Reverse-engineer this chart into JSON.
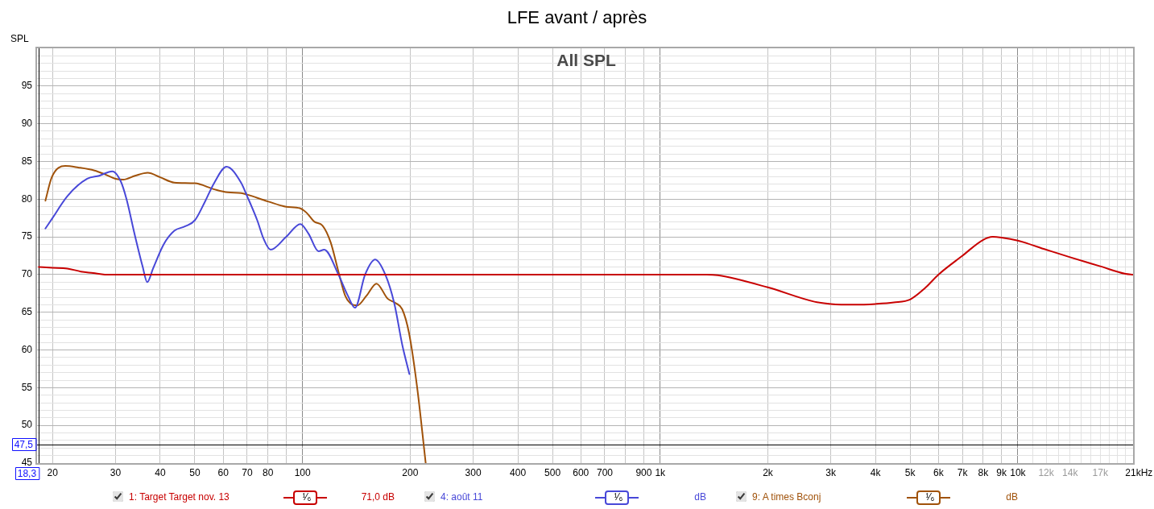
{
  "chart_data": {
    "type": "line",
    "title": "LFE avant / après",
    "subtitle": "All SPL",
    "ylabel": "SPL",
    "xlabel": "Hz",
    "xlim": [
      18.1,
      21000
    ],
    "ylim": [
      45,
      100
    ],
    "log": "x",
    "grid": true,
    "legend": "bottom",
    "line_style": "solid",
    "xticks": [
      20,
      30,
      40,
      50,
      60,
      70,
      80,
      {
        "value": 90,
        "label": null
      },
      100,
      200,
      300,
      400,
      500,
      600,
      700,
      {
        "value": 800,
        "label": null
      },
      900,
      {
        "value": 1000,
        "label": "1k"
      },
      {
        "value": 2000,
        "label": "2k"
      },
      {
        "value": 3000,
        "label": "3k"
      },
      {
        "value": 4000,
        "label": "4k"
      },
      {
        "value": 5000,
        "label": "5k"
      },
      {
        "value": 6000,
        "label": "6k"
      },
      {
        "value": 7000,
        "label": "7k"
      },
      {
        "value": 8000,
        "label": "8k"
      },
      {
        "value": 9000,
        "label": "9k"
      },
      {
        "value": 10000,
        "label": "10k"
      },
      {
        "value": 11000,
        "label": null
      },
      {
        "value": 12000,
        "label": "12k"
      },
      {
        "value": 13000,
        "label": null
      },
      {
        "value": 14000,
        "label": "14k"
      },
      {
        "value": 15000,
        "label": null
      },
      {
        "value": 16000,
        "label": null
      },
      {
        "value": 17000,
        "label": "17k"
      },
      {
        "value": 18000,
        "label": null
      },
      {
        "value": 19000,
        "label": null
      },
      {
        "value": 20000,
        "label": null
      },
      {
        "value": 21000,
        "label": "21k"
      }
    ],
    "yticks": [
      45,
      {
        "value": 46,
        "label": null
      },
      {
        "value": 47,
        "label": null
      },
      {
        "value": 48,
        "label": null
      },
      {
        "value": 49,
        "label": null
      },
      50,
      {
        "value": 51,
        "label": null
      },
      {
        "value": 52,
        "label": null
      },
      {
        "value": 53,
        "label": null
      },
      {
        "value": 54,
        "label": null
      },
      55,
      {
        "value": 56,
        "label": null
      },
      {
        "value": 57,
        "label": null
      },
      {
        "value": 58,
        "label": null
      },
      {
        "value": 59,
        "label": null
      },
      60,
      {
        "value": 61,
        "label": null
      },
      {
        "value": 62,
        "label": null
      },
      {
        "value": 63,
        "label": null
      },
      {
        "value": 64,
        "label": null
      },
      65,
      {
        "value": 66,
        "label": null
      },
      {
        "value": 67,
        "label": null
      },
      {
        "value": 68,
        "label": null
      },
      {
        "value": 69,
        "label": null
      },
      70,
      {
        "value": 71,
        "label": null
      },
      {
        "value": 72,
        "label": null
      },
      {
        "value": 73,
        "label": null
      },
      {
        "value": 74,
        "label": null
      },
      75,
      {
        "value": 76,
        "label": null
      },
      {
        "value": 77,
        "label": null
      },
      {
        "value": 78,
        "label": null
      },
      {
        "value": 79,
        "label": null
      },
      80,
      {
        "value": 81,
        "label": null
      },
      {
        "value": 82,
        "label": null
      },
      {
        "value": 83,
        "label": null
      },
      {
        "value": 84,
        "label": null
      },
      85,
      {
        "value": 86,
        "label": null
      },
      {
        "value": 87,
        "label": null
      },
      {
        "value": 88,
        "label": null
      },
      {
        "value": 89,
        "label": null
      },
      90,
      {
        "value": 91,
        "label": null
      },
      {
        "value": 92,
        "label": null
      },
      {
        "value": 93,
        "label": null
      },
      {
        "value": 94,
        "label": null
      },
      95,
      {
        "value": 96,
        "label": null
      },
      {
        "value": 97,
        "label": null
      },
      {
        "value": 98,
        "label": null
      },
      {
        "value": 99,
        "label": null
      }
    ],
    "ref_lines": [
      {
        "axis": "y",
        "value": 47.5,
        "label": "47,5",
        "color": "#000000"
      },
      {
        "axis": "x",
        "value": 18.3,
        "label": "18,3",
        "color": "#000000"
      }
    ],
    "annotations": [
      "¹⁄₆",
      "71,0 dB",
      "¹⁄₆",
      "dB",
      "¹⁄₆",
      "dB"
    ],
    "series": [
      {
        "name": "1: Target Target nov. 13",
        "color": "#c80000",
        "x": [
          18.3,
          20,
          22,
          24,
          26,
          28,
          30,
          100,
          1000,
          1350,
          1450,
          2000,
          2700,
          3000,
          3500,
          4000,
          4500,
          5000,
          5500,
          6000,
          7000,
          8000,
          8500,
          9000,
          10000,
          12000,
          14000,
          17000,
          20000,
          21000
        ],
        "values": [
          71,
          70.9,
          70.8,
          70.4,
          70.2,
          70,
          70,
          70,
          70,
          70,
          69.9,
          68.3,
          66.4,
          66.1,
          66,
          66.1,
          66.3,
          66.7,
          68.2,
          70,
          72.5,
          74.6,
          75,
          74.9,
          74.5,
          73.3,
          72.3,
          71.1,
          70.1,
          70
        ]
      },
      {
        "name": "4: août 11",
        "color": "#4848d8",
        "x": [
          19.1,
          20,
          22,
          25,
          27,
          29.4,
          31,
          32.2,
          33.9,
          35.7,
          36.8,
          38.2,
          40.9,
          43.8,
          47,
          50,
          52.9,
          56.7,
          61.3,
          67.3,
          70,
          74.7,
          77.9,
          81.4,
          90,
          98.6,
          104,
          110.8,
          115,
          126,
          133.9,
          140.2,
          149.6,
          159.6,
          170.4,
          180.7,
          190,
          199
        ],
        "values": [
          76.1,
          77.5,
          80.4,
          82.7,
          83.1,
          83.7,
          82.4,
          80,
          75.4,
          71.1,
          69,
          70.8,
          74,
          75.8,
          76.4,
          77.2,
          79.3,
          82.2,
          84.3,
          82.2,
          80.4,
          77.2,
          74.7,
          73.3,
          75,
          76.7,
          75.4,
          73.1,
          73.3,
          70,
          67.2,
          65.6,
          70,
          72,
          70,
          66.1,
          60.7,
          56.8
        ]
      },
      {
        "name": "9: A times Bconj",
        "color": "#a0520a",
        "x": [
          19.1,
          19.9,
          21.7,
          23.6,
          26.2,
          28,
          30,
          31.5,
          34,
          36.9,
          40,
          43.8,
          50,
          56.7,
          61.8,
          67.4,
          70,
          80,
          90,
          98.3,
          102.6,
          108,
          113.7,
          119.8,
          126,
          131.6,
          136,
          142.2,
          151,
          161,
          173,
          182.4,
          190,
          198.6,
          209.2,
          221
        ],
        "values": [
          79.8,
          82.9,
          84.4,
          84.2,
          83.8,
          83.3,
          82.7,
          82.6,
          83.1,
          83.5,
          82.9,
          82.2,
          82.1,
          81.3,
          80.9,
          80.8,
          80.6,
          79.7,
          79,
          78.8,
          78.2,
          77,
          76.5,
          74.3,
          70.4,
          67.2,
          66.2,
          65.9,
          67.2,
          68.8,
          66.8,
          66.2,
          65.4,
          62.2,
          55,
          45
        ]
      }
    ]
  }
}
